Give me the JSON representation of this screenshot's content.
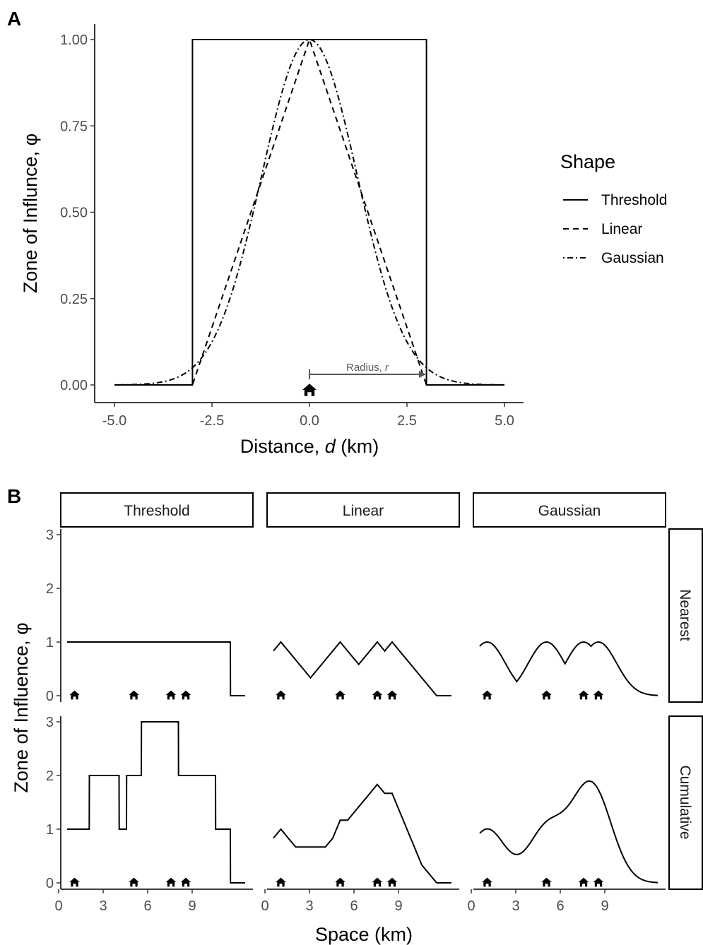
{
  "panel_a": {
    "letter": "A",
    "ylabel": "Zone of Influnce, φ",
    "xlabel_prefix": "Distance, ",
    "xlabel_var": "d",
    "xlabel_suffix": " (km)",
    "annotation_prefix": "Radius, ",
    "annotation_var": "r",
    "legend": {
      "title": "Shape",
      "entries": [
        "Threshold",
        "Linear",
        "Gaussian"
      ]
    }
  },
  "panel_b": {
    "letter": "B",
    "ylabel": "Zone of Influence, φ",
    "xlabel": "Space (km)",
    "columns": [
      "Threshold",
      "Linear",
      "Gaussian"
    ],
    "rows": [
      "Nearest",
      "Cumulative"
    ]
  },
  "icon": "house-icon",
  "chart_data": [
    {
      "type": "line",
      "id": "A",
      "xlabel": "Distance, d (km)",
      "ylabel": "Zone of Influnce, φ",
      "xlim": [
        -5,
        5
      ],
      "ylim": [
        0,
        1
      ],
      "xticks": [
        -5,
        -2.5,
        0,
        2.5,
        5
      ],
      "xtick_labels": [
        "-5.0",
        "-2.5",
        "0.0",
        "2.5",
        "5.0"
      ],
      "yticks": [
        0,
        0.25,
        0.5,
        0.75,
        1
      ],
      "ytick_labels": [
        "0.00",
        "0.25",
        "0.50",
        "0.75",
        "1.00"
      ],
      "radius": 3,
      "house_x": 0,
      "grid": false,
      "legend_position": "right",
      "series": [
        {
          "name": "Threshold",
          "linetype": "solid",
          "kind": "threshold"
        },
        {
          "name": "Linear",
          "linetype": "dashed",
          "kind": "linear"
        },
        {
          "name": "Gaussian",
          "linetype": "dotdash",
          "kind": "gaussian",
          "sigma": 1.225
        }
      ]
    },
    {
      "type": "line",
      "id": "B",
      "xlabel": "Space (km)",
      "ylabel": "Zone of Influence, φ",
      "xlim": [
        -0.5,
        12.5
      ],
      "ylim": [
        0,
        3
      ],
      "xticks": [
        0,
        3,
        6,
        9
      ],
      "xtick_labels": [
        "0",
        "3",
        "6",
        "9"
      ],
      "yticks": [
        0,
        1,
        2,
        3
      ],
      "ytick_labels": [
        "0",
        "1",
        "2",
        "3"
      ],
      "radius": 3,
      "houses": [
        0.5,
        4.5,
        7,
        8
      ],
      "x_range": [
        0,
        12
      ],
      "grid": false,
      "facet_columns": [
        "Threshold",
        "Linear",
        "Gaussian"
      ],
      "facet_rows": [
        "Nearest",
        "Cumulative"
      ]
    }
  ]
}
